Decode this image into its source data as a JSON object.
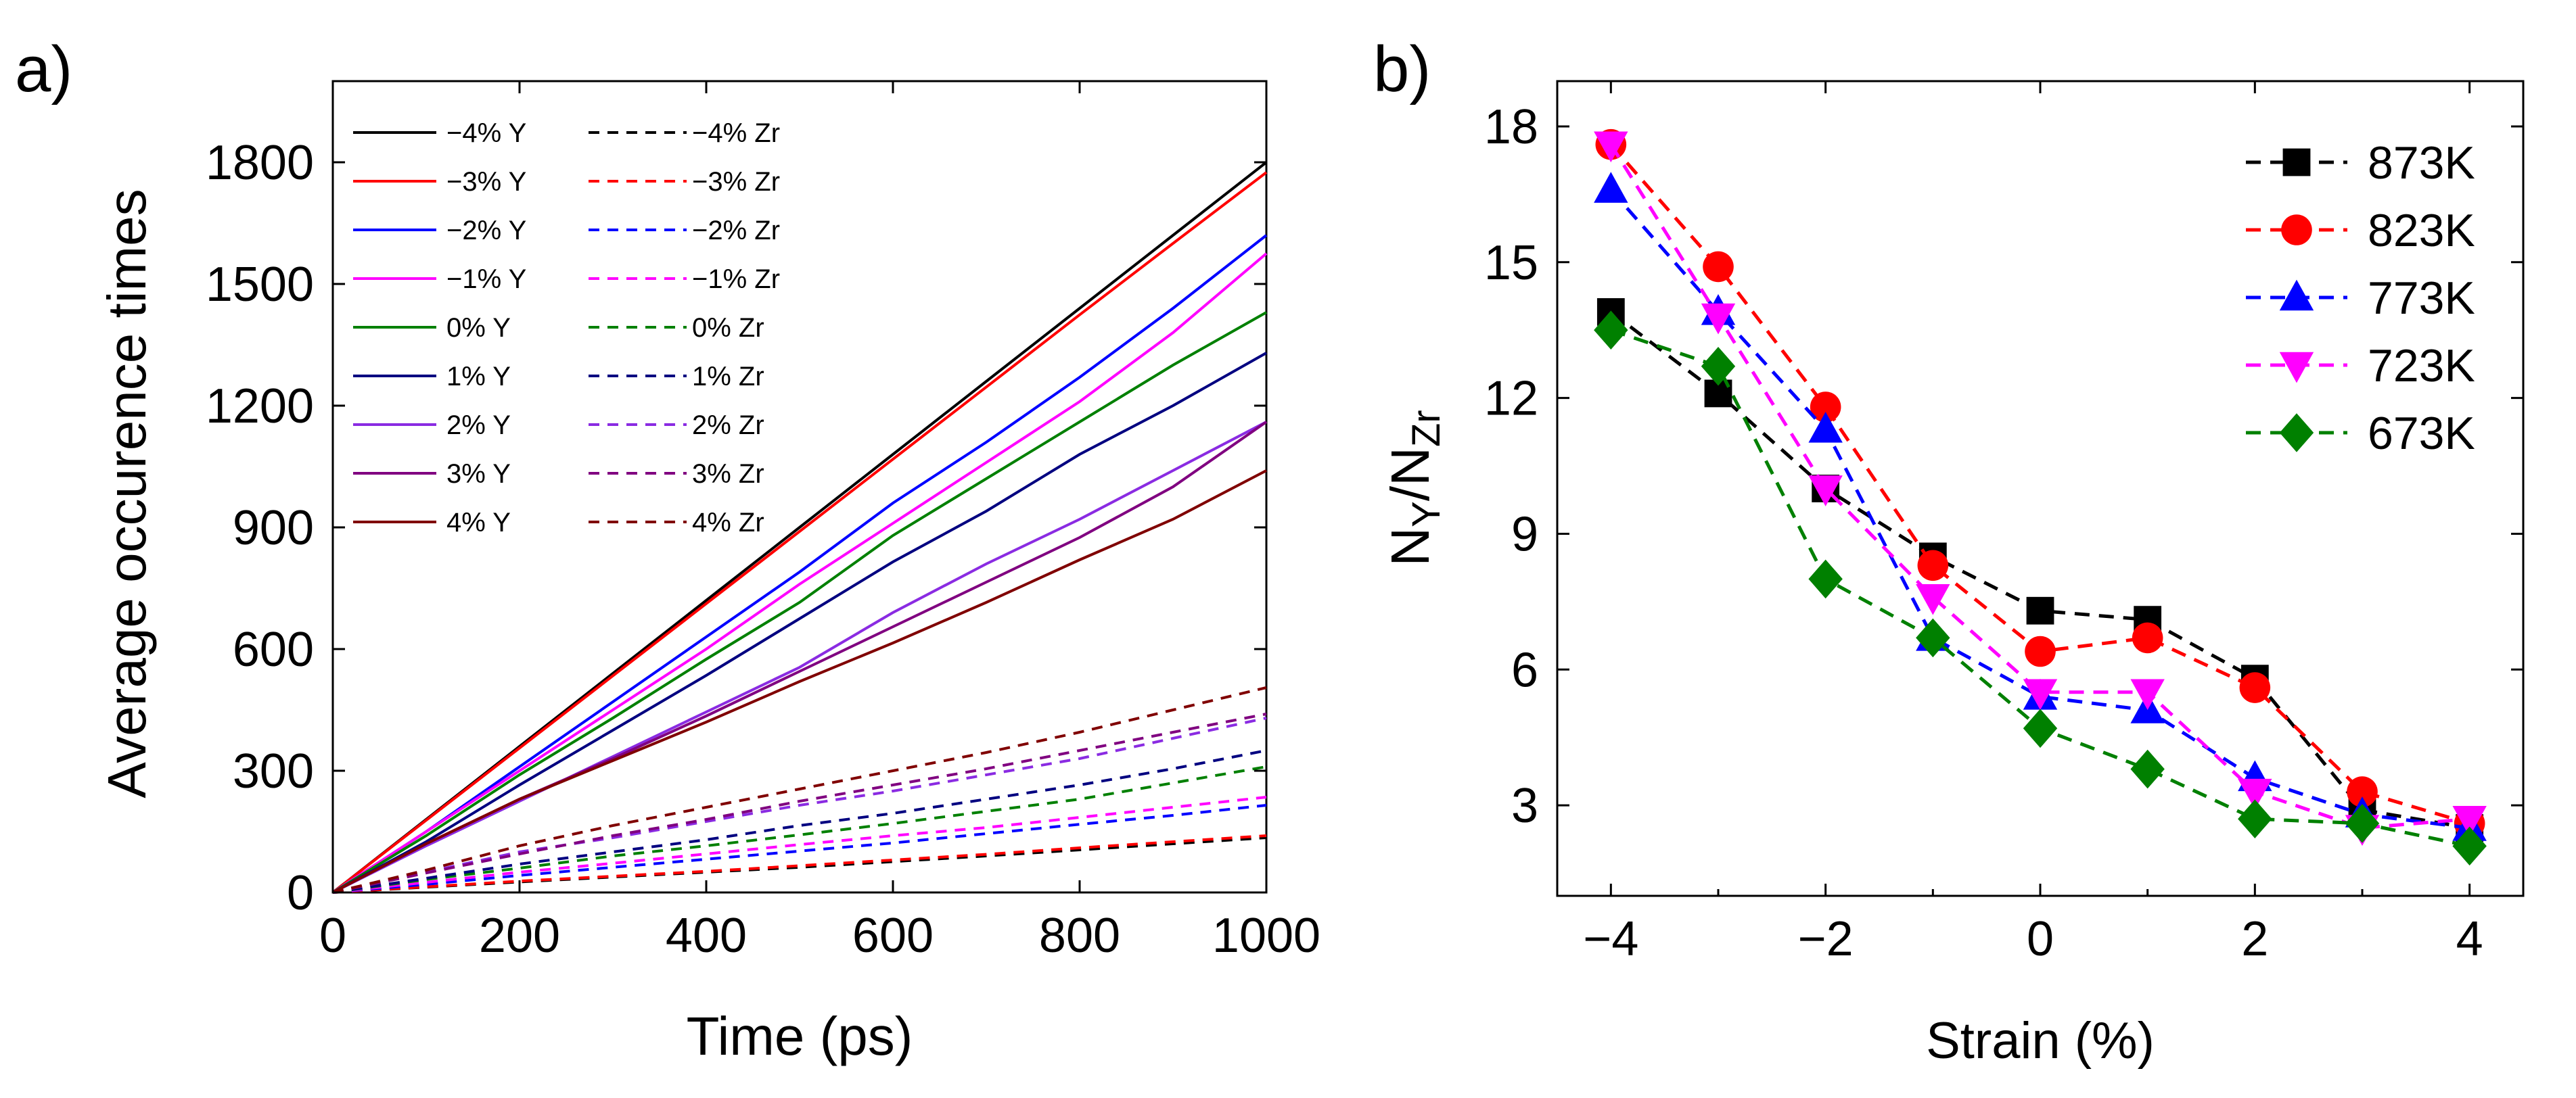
{
  "chart_data": [
    {
      "panel_label": "a)",
      "type": "line",
      "title": "",
      "xlabel": "Time (ps)",
      "ylabel": "Average occurence times",
      "xlim": [
        0,
        1000
      ],
      "ylim": [
        0,
        2000
      ],
      "xticks": [
        0,
        200,
        400,
        600,
        800,
        1000
      ],
      "xtick_labels": [
        "0",
        "200",
        "400",
        "600",
        "800",
        "1000"
      ],
      "yticks": [
        0,
        300,
        600,
        900,
        1200,
        1500,
        1800
      ],
      "ytick_labels": [
        "0",
        "300",
        "600",
        "900",
        "1200",
        "1500",
        "1800"
      ],
      "grid": false,
      "legend_position": "top-left",
      "x": [
        0,
        100,
        200,
        300,
        400,
        500,
        600,
        700,
        800,
        900,
        1000
      ],
      "series": [
        {
          "name": "−4% Y",
          "color": "#000000",
          "dash": "solid",
          "values": [
            0,
            180,
            360,
            540,
            720,
            900,
            1080,
            1260,
            1440,
            1620,
            1800
          ]
        },
        {
          "name": "−3% Y",
          "color": "#ff0000",
          "dash": "solid",
          "values": [
            0,
            178,
            356,
            534,
            712,
            890,
            1068,
            1246,
            1424,
            1600,
            1775
          ]
        },
        {
          "name": "−2%  Y",
          "color": "#0000ff",
          "dash": "solid",
          "values": [
            0,
            150,
            310,
            470,
            630,
            790,
            960,
            1110,
            1270,
            1440,
            1620
          ]
        },
        {
          "name": "−1% Y",
          "color": "#ff00ff",
          "dash": "solid",
          "values": [
            0,
            150,
            300,
            450,
            600,
            760,
            910,
            1060,
            1210,
            1380,
            1575
          ]
        },
        {
          "name": "0% Y",
          "color": "#008000",
          "dash": "solid",
          "values": [
            0,
            140,
            290,
            430,
            575,
            715,
            880,
            1020,
            1160,
            1300,
            1430
          ]
        },
        {
          "name": "1% Y",
          "color": "#000080",
          "dash": "solid",
          "values": [
            0,
            125,
            265,
            400,
            535,
            675,
            815,
            940,
            1080,
            1200,
            1330
          ]
        },
        {
          "name": "2% Y",
          "color": "#8a2be2",
          "dash": "solid",
          "values": [
            0,
            115,
            225,
            335,
            445,
            555,
            690,
            810,
            920,
            1040,
            1160
          ]
        },
        {
          "name": "3% Y",
          "color": "#800080",
          "dash": "solid",
          "values": [
            0,
            120,
            230,
            330,
            435,
            545,
            655,
            765,
            875,
            1000,
            1160
          ]
        },
        {
          "name": "4% Y",
          "color": "#800000",
          "dash": "solid",
          "values": [
            0,
            120,
            230,
            325,
            420,
            520,
            615,
            715,
            820,
            920,
            1040
          ]
        },
        {
          "name": "−4% Zr",
          "color": "#000000",
          "dash": "dashed",
          "values": [
            0,
            13,
            26,
            38,
            50,
            62,
            76,
            90,
            105,
            120,
            135
          ]
        },
        {
          "name": "−3% Zr",
          "color": "#ff0000",
          "dash": "dashed",
          "values": [
            0,
            14,
            28,
            40,
            52,
            66,
            80,
            94,
            110,
            125,
            140
          ]
        },
        {
          "name": "−2% Zr",
          "color": "#0000ff",
          "dash": "dashed",
          "values": [
            0,
            20,
            42,
            62,
            82,
            102,
            122,
            145,
            168,
            190,
            215
          ]
        },
        {
          "name": "−1% Zr",
          "color": "#ff00ff",
          "dash": "dashed",
          "values": [
            0,
            25,
            50,
            72,
            95,
            118,
            140,
            160,
            185,
            210,
            235
          ]
        },
        {
          "name": "0% Zr",
          "color": "#008000",
          "dash": "dashed",
          "values": [
            0,
            32,
            60,
            90,
            115,
            142,
            170,
            200,
            230,
            270,
            310
          ]
        },
        {
          "name": "1% Zr",
          "color": "#000080",
          "dash": "dashed",
          "values": [
            0,
            35,
            70,
            100,
            130,
            165,
            195,
            230,
            265,
            305,
            350
          ]
        },
        {
          "name": "2% Zr",
          "color": "#8a2be2",
          "dash": "dashed",
          "values": [
            0,
            50,
            100,
            135,
            175,
            215,
            250,
            290,
            330,
            380,
            430
          ]
        },
        {
          "name": "3% Zr",
          "color": "#800080",
          "dash": "dashed",
          "values": [
            0,
            48,
            95,
            140,
            180,
            225,
            265,
            305,
            350,
            395,
            440
          ]
        },
        {
          "name": "4% Zr",
          "color": "#800000",
          "dash": "dashed",
          "values": [
            0,
            55,
            115,
            165,
            210,
            255,
            300,
            345,
            395,
            450,
            505
          ]
        }
      ]
    },
    {
      "panel_label": "b)",
      "type": "line",
      "title": "",
      "xlabel": "Strain (%)",
      "ylabel_main": "N",
      "ylabel_sub1": "Y",
      "ylabel_mid": "/N",
      "ylabel_sub2": "Zr",
      "xlim": [
        -4.5,
        4.5
      ],
      "ylim": [
        1,
        19
      ],
      "xticks": [
        -4,
        -2,
        0,
        2,
        4
      ],
      "xtick_labels": [
        "−4",
        "−2",
        "0",
        "2",
        "4"
      ],
      "yticks": [
        3,
        6,
        9,
        12,
        15,
        18
      ],
      "ytick_labels": [
        "3",
        "6",
        "9",
        "12",
        "15",
        "18"
      ],
      "grid": false,
      "legend_position": "top-right",
      "x": [
        -4,
        -3,
        -2,
        -1,
        0,
        1,
        2,
        3,
        4
      ],
      "series": [
        {
          "name": "873K",
          "color": "#000000",
          "marker": "square",
          "values": [
            13.9,
            12.1,
            10.0,
            8.5,
            7.3,
            7.1,
            5.8,
            2.9,
            2.5
          ]
        },
        {
          "name": "823K",
          "color": "#ff0000",
          "marker": "circle",
          "values": [
            17.6,
            14.9,
            11.8,
            8.3,
            6.4,
            6.7,
            5.6,
            3.3,
            2.6
          ]
        },
        {
          "name": "773K",
          "color": "#0000ff",
          "marker": "triangle-up",
          "values": [
            16.6,
            13.9,
            11.3,
            6.7,
            5.4,
            5.1,
            3.6,
            2.8,
            2.5
          ]
        },
        {
          "name": "723K",
          "color": "#ff00ff",
          "marker": "triangle-down",
          "values": [
            17.6,
            13.8,
            10.0,
            7.6,
            5.5,
            5.5,
            3.3,
            2.5,
            2.7
          ]
        },
        {
          "name": "673K",
          "color": "#008000",
          "marker": "diamond",
          "values": [
            13.5,
            12.7,
            8.0,
            6.7,
            4.7,
            3.8,
            2.7,
            2.6,
            2.1
          ]
        }
      ]
    }
  ]
}
